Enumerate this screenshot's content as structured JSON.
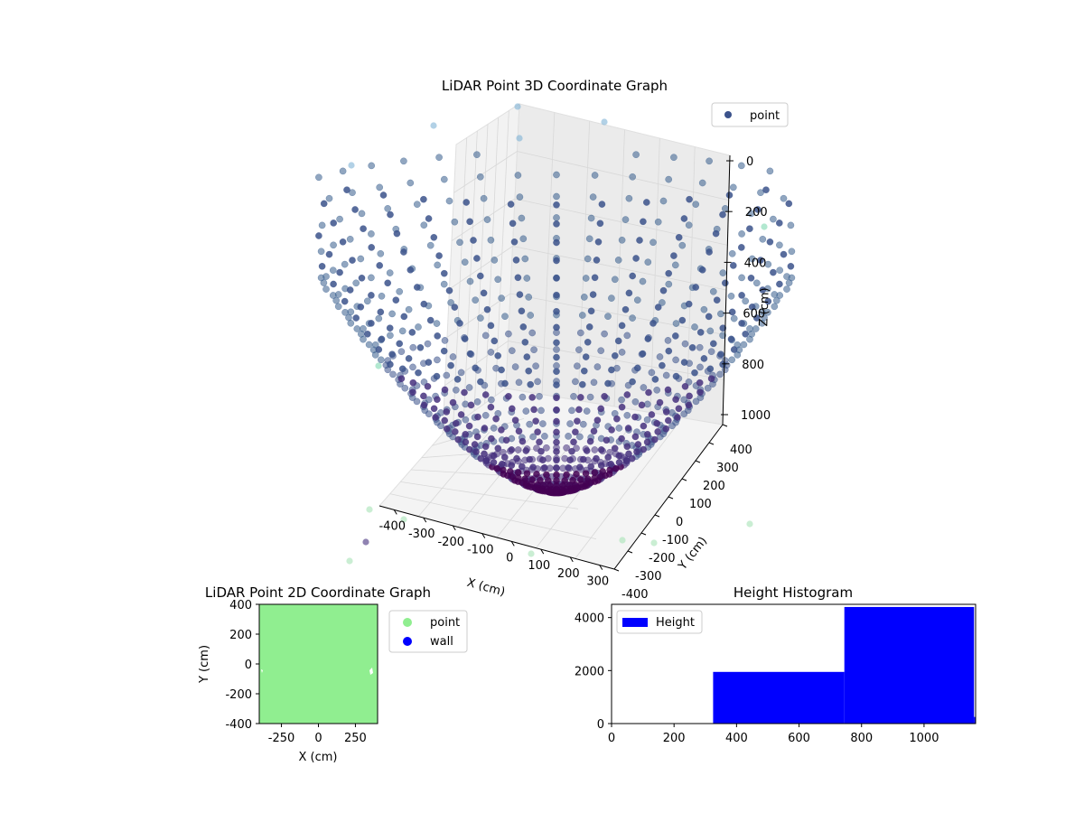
{
  "chart_data": [
    {
      "type": "scatter",
      "title": "LiDAR Point 3D Coordinate Graph",
      "xlabel": "X (cm)",
      "ylabel": "Y (cm)",
      "zlabel": "Z (cm)",
      "x_ticks": [
        "-400",
        "-300",
        "-200",
        "-100",
        "0",
        "100",
        "200",
        "300"
      ],
      "y_ticks": [
        "-400",
        "-300",
        "-200",
        "-100",
        "0",
        "100",
        "200",
        "300",
        "400"
      ],
      "z_ticks": [
        "0",
        "200",
        "400",
        "600",
        "800",
        "1000"
      ],
      "xlim": [
        -450,
        350
      ],
      "ylim": [
        -400,
        400
      ],
      "zlim": [
        0,
        1100
      ],
      "z_inverted": true,
      "grid": true,
      "legend": {
        "placement": "top-right",
        "entries": [
          "point"
        ]
      },
      "series": [
        {
          "name": "point",
          "color": "#3b528b",
          "colormap": "viridis"
        }
      ]
    },
    {
      "type": "scatter",
      "title": "LiDAR Point 2D Coordinate Graph",
      "xlabel": "X (cm)",
      "ylabel": "Y (cm)",
      "x_ticks": [
        "-250",
        "0",
        "250"
      ],
      "y_ticks": [
        "400",
        "200",
        "0",
        "-200",
        "-400"
      ],
      "xlim": [
        -400,
        400
      ],
      "ylim": [
        -400,
        400
      ],
      "legend": {
        "placement": "right",
        "entries": [
          "point",
          "wall"
        ]
      },
      "series": [
        {
          "name": "point",
          "color": "#90ee90"
        },
        {
          "name": "wall",
          "color": "#0000ff"
        }
      ]
    },
    {
      "type": "bar",
      "title": "Height Histogram",
      "x_ticks": [
        "0",
        "200",
        "400",
        "600",
        "800",
        "1000"
      ],
      "y_ticks": [
        "0",
        "2000",
        "4000"
      ],
      "xlim": [
        0,
        1165
      ],
      "ylim": [
        0,
        4500
      ],
      "legend": {
        "placement": "top-left",
        "entries": [
          "Height"
        ]
      },
      "bins": [
        {
          "start": 325,
          "end": 745,
          "count": 1950
        },
        {
          "start": 745,
          "end": 1160,
          "count": 4400
        },
        {
          "start": 1160,
          "end": 1165,
          "count": 250
        }
      ],
      "series": [
        {
          "name": "Height",
          "color": "#0000ff"
        }
      ]
    }
  ]
}
